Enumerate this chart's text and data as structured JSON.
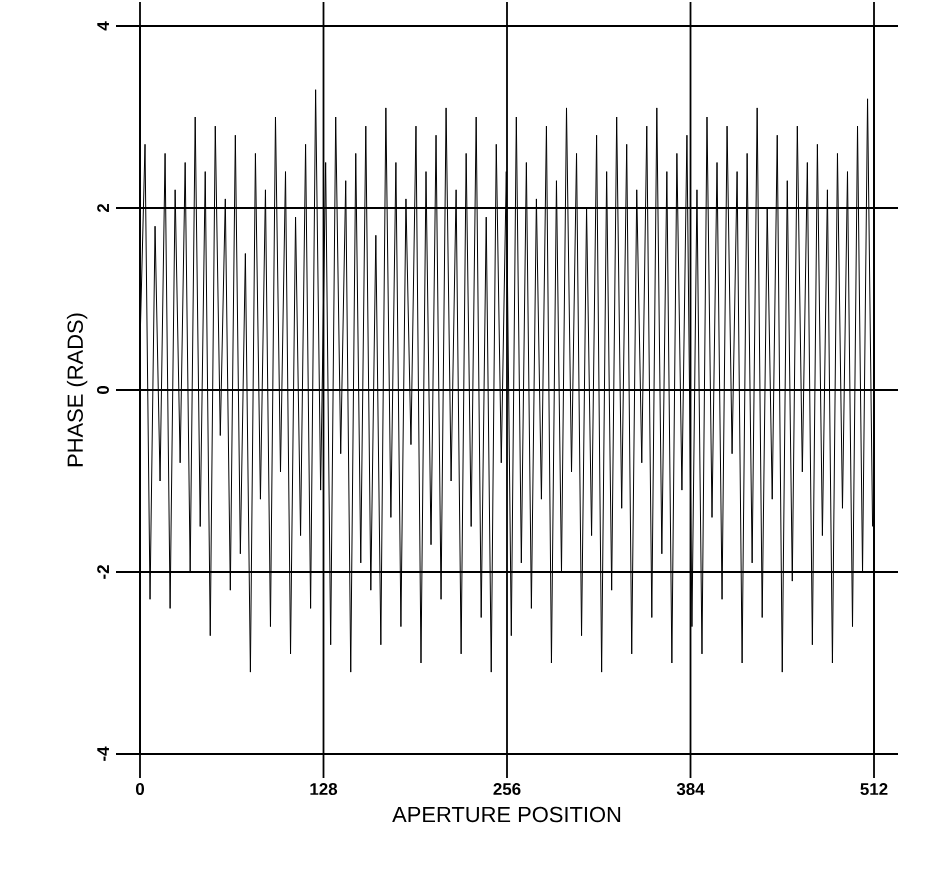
{
  "chart_data": {
    "type": "line",
    "xlabel": "APERTURE POSITION",
    "ylabel": "PHASE (RADS)",
    "xlim": [
      0,
      512
    ],
    "ylim": [
      -4,
      4
    ],
    "xticks": [
      0,
      128,
      256,
      384,
      512
    ],
    "yticks": [
      -4,
      -2,
      0,
      2,
      4
    ],
    "grid": true,
    "line_style": "solid",
    "marker": "none",
    "x": [
      0,
      3.5,
      7,
      10.5,
      14,
      17.5,
      21,
      24.5,
      28,
      31.5,
      35,
      38.5,
      42,
      45.5,
      49,
      52.5,
      56,
      59.5,
      63,
      66.5,
      70,
      73.5,
      77,
      80.5,
      84,
      87.5,
      91,
      94.5,
      98,
      101.5,
      105,
      108.5,
      112,
      115.5,
      119,
      122.5,
      126,
      129.5,
      133,
      136.5,
      140,
      143.5,
      147,
      150.5,
      154,
      157.5,
      161,
      164.5,
      168,
      171.5,
      175,
      178.5,
      182,
      185.5,
      189,
      192.5,
      196,
      199.5,
      203,
      206.5,
      210,
      213.5,
      217,
      220.5,
      224,
      227.5,
      231,
      234.5,
      238,
      241.5,
      245,
      248.5,
      252,
      255.5,
      259,
      262.5,
      266,
      269.5,
      273,
      276.5,
      280,
      283.5,
      287,
      290.5,
      294,
      297.5,
      301,
      304.5,
      308,
      311.5,
      315,
      318.5,
      322,
      325.5,
      329,
      332.5,
      336,
      339.5,
      343,
      346.5,
      350,
      353.5,
      357,
      360.5,
      364,
      367.5,
      371,
      374.5,
      378,
      381.5,
      385,
      388.5,
      392,
      395.5,
      399,
      402.5,
      406,
      409.5,
      413,
      416.5,
      420,
      423.5,
      427,
      430.5,
      434,
      437.5,
      441,
      444.5,
      448,
      451.5,
      455,
      458.5,
      462,
      465.5,
      469,
      472.5,
      476,
      479.5,
      483,
      486.5,
      490,
      493.5,
      497,
      500.5,
      504,
      507.5,
      511
    ],
    "series": [
      {
        "color": "#000000",
        "values": [
          0.5,
          2.7,
          -2.3,
          1.8,
          -1.0,
          2.6,
          -2.4,
          2.2,
          -0.8,
          2.5,
          -2.0,
          3.0,
          -1.5,
          2.4,
          -2.7,
          2.9,
          -0.5,
          2.1,
          -2.2,
          2.8,
          -1.8,
          1.5,
          -3.1,
          2.6,
          -1.2,
          2.2,
          -2.6,
          3.0,
          -0.9,
          2.4,
          -2.9,
          1.9,
          -1.6,
          2.7,
          -2.4,
          3.3,
          -1.1,
          2.5,
          -2.8,
          3.0,
          -0.7,
          2.3,
          -3.1,
          2.6,
          -1.9,
          2.9,
          -2.2,
          1.7,
          -2.8,
          3.1,
          -1.4,
          2.5,
          -2.6,
          2.1,
          -0.6,
          2.9,
          -3.0,
          2.4,
          -1.7,
          2.8,
          -2.3,
          3.1,
          -1.0,
          2.2,
          -2.9,
          2.6,
          -1.5,
          3.0,
          -2.5,
          1.9,
          -3.1,
          2.7,
          -0.8,
          2.4,
          -2.7,
          3.0,
          -1.9,
          2.5,
          -2.4,
          2.1,
          -1.2,
          2.9,
          -3.0,
          2.3,
          -2.0,
          3.1,
          -0.9,
          2.6,
          -2.7,
          2.0,
          -1.6,
          2.8,
          -3.1,
          2.4,
          -2.2,
          3.0,
          -1.3,
          2.7,
          -2.9,
          2.2,
          -0.8,
          2.9,
          -2.5,
          3.1,
          -1.8,
          2.4,
          -3.0,
          2.6,
          -1.1,
          2.8,
          -2.6,
          2.2,
          -2.9,
          3.0,
          -1.4,
          2.5,
          -2.3,
          2.9,
          -0.7,
          2.4,
          -3.0,
          2.6,
          -1.9,
          3.1,
          -2.5,
          2.0,
          -1.2,
          2.8,
          -3.1,
          2.3,
          -2.1,
          2.9,
          -0.9,
          2.5,
          -2.8,
          2.7,
          -1.6,
          2.2,
          -3.0,
          2.6,
          -1.3,
          2.4,
          -2.6,
          2.9,
          -2.0,
          3.2,
          -1.5
        ]
      }
    ]
  }
}
